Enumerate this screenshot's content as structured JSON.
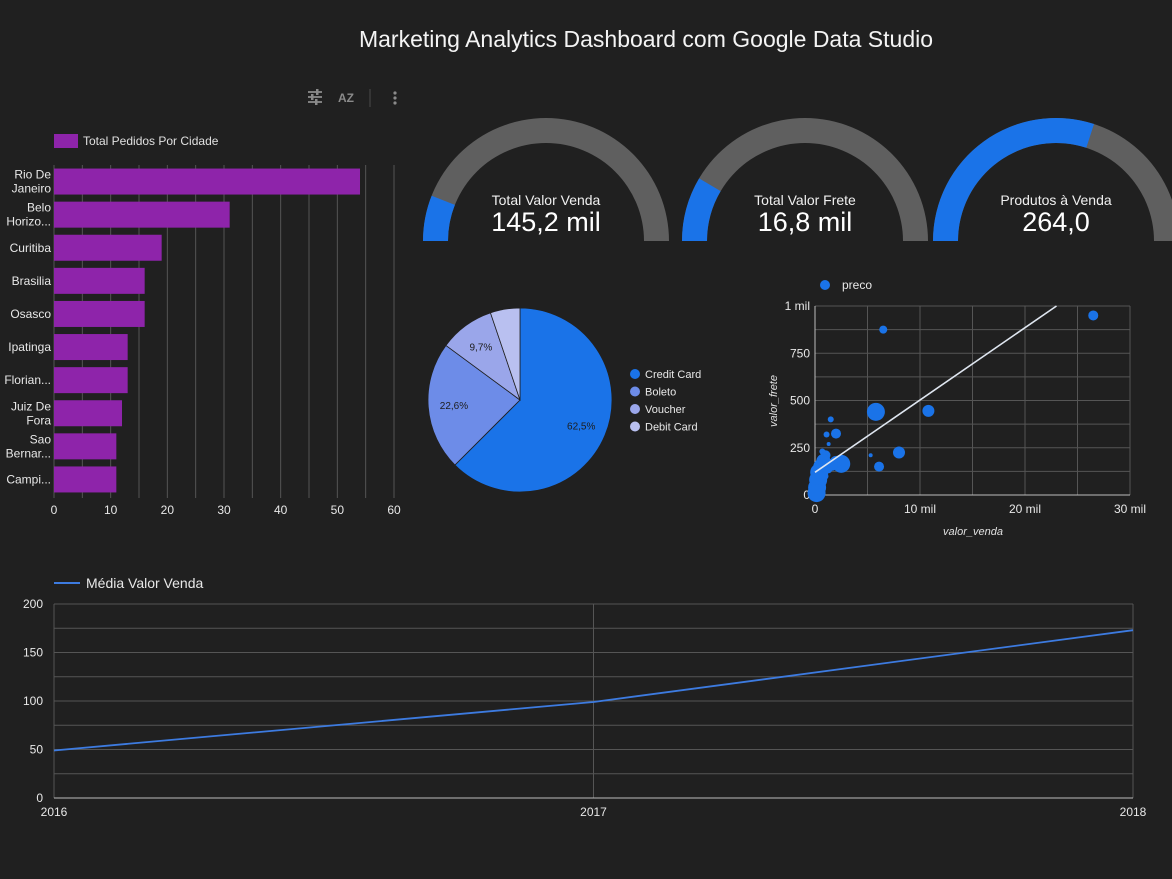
{
  "title": "Marketing Analytics Dashboard com Google Data Studio",
  "toolbar": {
    "icons": [
      "sliders-icon",
      "sort-az-icon",
      "more-vert-icon"
    ],
    "sort_label": "AZ"
  },
  "colors": {
    "background": "#202020",
    "bar": "#8e24aa",
    "gauge_fill": "#1a73e8",
    "gauge_track": "#5f5f5f",
    "pie": [
      "#1a73e8",
      "#6d8ce8",
      "#9aa6ea",
      "#b9c0f0"
    ],
    "scatter": "#1a73e8",
    "line": "#3d7be0",
    "grid": "#555555"
  },
  "chart_data": [
    {
      "type": "bar",
      "orientation": "horizontal",
      "legend": "Total Pedidos Por Cidade",
      "category_labels": [
        [
          "Rio De",
          "Janeiro"
        ],
        [
          "Belo",
          "Horizo..."
        ],
        [
          "Curitiba"
        ],
        [
          "Brasilia"
        ],
        [
          "Osasco"
        ],
        [
          "Ipatinga"
        ],
        [
          "Florian..."
        ],
        [
          "Juiz De",
          "Fora"
        ],
        [
          "Sao",
          "Bernar..."
        ],
        [
          "Campi..."
        ]
      ],
      "values": [
        54,
        31,
        19,
        16,
        16,
        13,
        13,
        12,
        11,
        11
      ],
      "xlim": [
        0,
        60
      ],
      "xticks": [
        "0",
        "10",
        "20",
        "30",
        "40",
        "50",
        "60"
      ]
    },
    {
      "type": "gauge",
      "label": "Total Valor Venda",
      "display": "145,2 mil",
      "fraction": 0.12
    },
    {
      "type": "gauge",
      "label": "Total Valor Frete",
      "display": "16,8 mil",
      "fraction": 0.17
    },
    {
      "type": "gauge",
      "label": "Produtos à Venda",
      "display": "264,0",
      "fraction": 0.6
    },
    {
      "type": "pie",
      "slices": [
        {
          "name": "Credit Card",
          "value": 62.5,
          "label": "62,5%"
        },
        {
          "name": "Boleto",
          "value": 22.6,
          "label": "22,6%"
        },
        {
          "name": "Voucher",
          "value": 9.7,
          "label": "9,7%"
        },
        {
          "name": "Debit Card",
          "value": 5.2,
          "label": ""
        }
      ]
    },
    {
      "type": "scatter",
      "legend": "preco",
      "xlabel": "valor_venda",
      "ylabel": "valor_frete",
      "xlim": [
        0,
        30000
      ],
      "ylim": [
        0,
        1000
      ],
      "xticks": [
        {
          "v": 0,
          "t": "0"
        },
        {
          "v": 10000,
          "t": "10 mil"
        },
        {
          "v": 20000,
          "t": "20 mil"
        },
        {
          "v": 30000,
          "t": "30 mil"
        }
      ],
      "yticks": [
        {
          "v": 0,
          "t": "0"
        },
        {
          "v": 250,
          "t": "250"
        },
        {
          "v": 500,
          "t": "500"
        },
        {
          "v": 750,
          "t": "750"
        },
        {
          "v": 1000,
          "t": "1 mil"
        }
      ],
      "trendline": [
        [
          0,
          120
        ],
        [
          23000,
          1000
        ]
      ],
      "points": [
        [
          26500,
          950,
          5
        ],
        [
          6500,
          875,
          4
        ],
        [
          10800,
          445,
          6
        ],
        [
          5800,
          440,
          9
        ],
        [
          8000,
          225,
          6
        ],
        [
          6100,
          150,
          5
        ],
        [
          5300,
          210,
          2
        ],
        [
          2500,
          165,
          9
        ],
        [
          2000,
          175,
          6
        ],
        [
          1500,
          400,
          3
        ],
        [
          2000,
          325,
          5
        ],
        [
          1100,
          320,
          3
        ],
        [
          1300,
          270,
          2
        ],
        [
          1000,
          210,
          5
        ],
        [
          800,
          180,
          7
        ],
        [
          600,
          150,
          8
        ],
        [
          400,
          120,
          9
        ],
        [
          300,
          80,
          9
        ],
        [
          200,
          40,
          9
        ],
        [
          150,
          10,
          9
        ],
        [
          700,
          230,
          3
        ],
        [
          1600,
          160,
          6
        ],
        [
          900,
          100,
          4
        ],
        [
          1200,
          140,
          5
        ]
      ]
    },
    {
      "type": "line",
      "series": [
        {
          "name": "Média Valor Venda",
          "x": [
            "2016",
            "2017",
            "2018"
          ],
          "values": [
            49,
            99,
            173
          ]
        }
      ],
      "ylim": [
        0,
        200
      ],
      "yticks": [
        "0",
        "50",
        "100",
        "150",
        "200"
      ]
    }
  ]
}
